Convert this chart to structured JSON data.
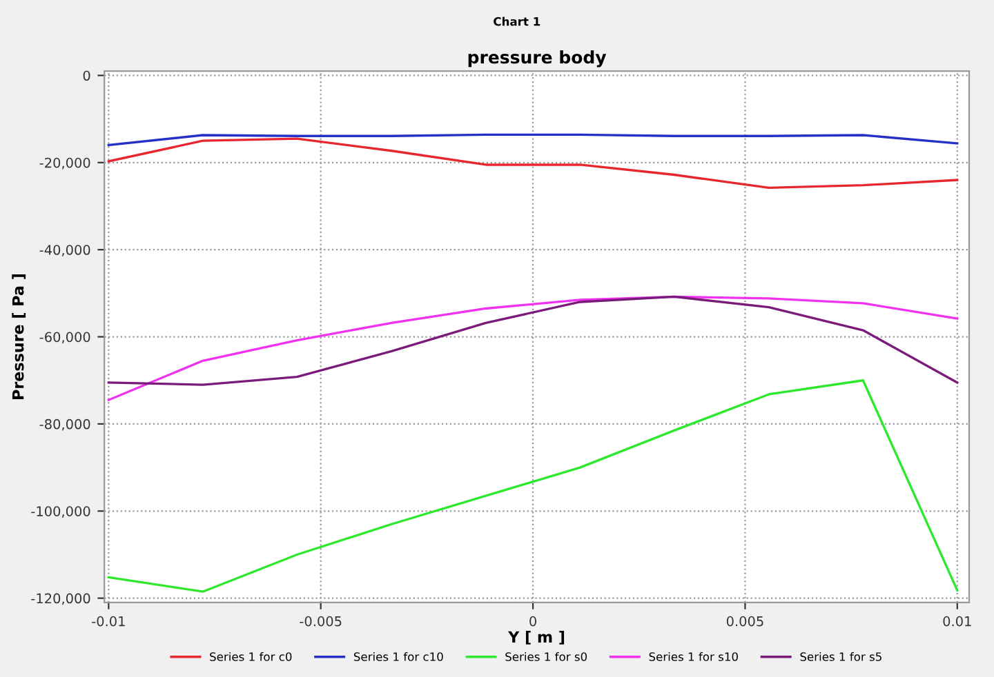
{
  "chart_data": {
    "type": "line",
    "title": "Chart 1",
    "subtitle": "pressure body",
    "xlabel": "Y [ m ]",
    "ylabel": "Pressure [ Pa ]",
    "x": [
      -0.01,
      -0.00778,
      -0.00556,
      -0.00333,
      -0.00111,
      0.00111,
      0.00333,
      0.00556,
      0.00778,
      0.01
    ],
    "series": [
      {
        "name": "Series 1 for c0",
        "color": "#e8262e",
        "values": [
          -19700,
          -15000,
          -14500,
          -17300,
          -20500,
          -20500,
          -22800,
          -25800,
          -25200,
          -24000
        ]
      },
      {
        "name": "Series 1 for c10",
        "color": "#2430c8",
        "values": [
          -16000,
          -13700,
          -13900,
          -13900,
          -13600,
          -13600,
          -13900,
          -13900,
          -13700,
          -15600
        ]
      },
      {
        "name": "Series 1 for s0",
        "color": "#2ee82e",
        "values": [
          -115200,
          -118500,
          -110000,
          -103000,
          -96500,
          -90000,
          -81500,
          -73200,
          -70000,
          -118200
        ]
      },
      {
        "name": "Series 1 for s10",
        "color": "#f032f0",
        "values": [
          -74500,
          -65500,
          -60800,
          -56800,
          -53500,
          -51500,
          -50800,
          -51200,
          -52300,
          -55800
        ]
      },
      {
        "name": "Series 1 for s5",
        "color": "#7a1a7a",
        "values": [
          -70500,
          -71000,
          -69200,
          -63300,
          -56800,
          -52000,
          -50800,
          -53200,
          -58500,
          -70500
        ]
      }
    ],
    "xlim": [
      -0.0101,
      0.01028
    ],
    "ylim": [
      -121000,
      1000
    ],
    "xticks": [
      -0.01,
      -0.005,
      0,
      0.005,
      0.01
    ],
    "yticks": [
      {
        "value": 0,
        "label": "0"
      },
      {
        "value": -20000,
        "label": "-20,000"
      },
      {
        "value": -40000,
        "label": "-40,000"
      },
      {
        "value": -60000,
        "label": "-60,000"
      },
      {
        "value": -80000,
        "label": "-80,000"
      },
      {
        "value": -100000,
        "label": "-100,000"
      },
      {
        "value": -120000,
        "label": "-120,000"
      }
    ],
    "grid": true,
    "legend": "bottom",
    "marker": "none",
    "line_style": "solid"
  }
}
